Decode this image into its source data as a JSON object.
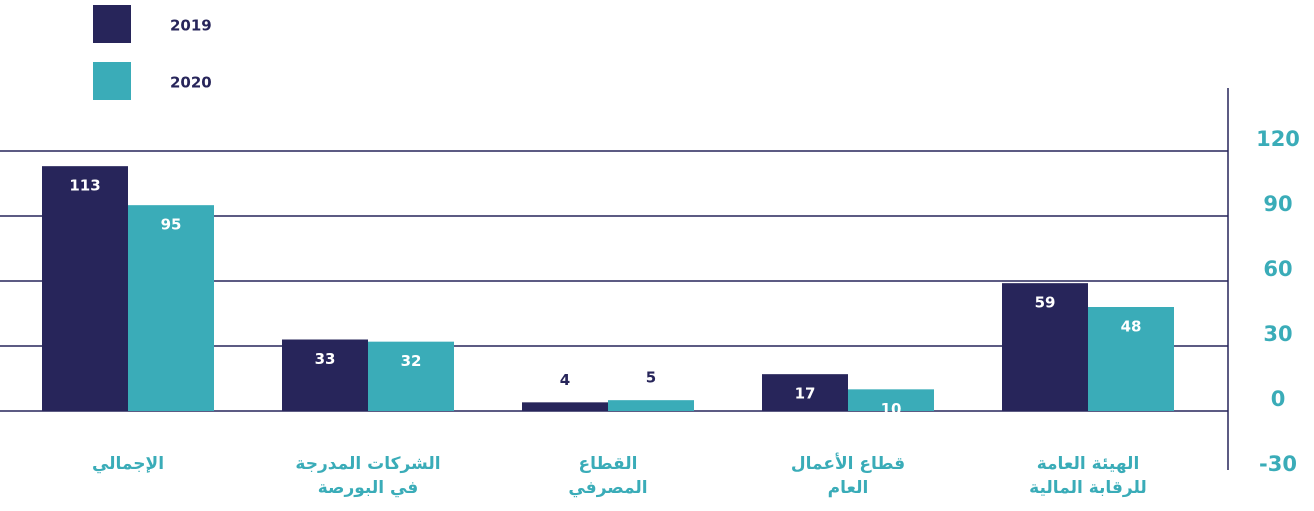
{
  "chart_data": {
    "type": "bar",
    "categories": [
      "الإجمالي",
      "الشركات المدرجة\nفي البورصة",
      "القطاع\nالمصرفي",
      "قطاع الأعمال\nالعام",
      "الهيئة العامة\nللرقابة المالية"
    ],
    "series": [
      {
        "name": "2019",
        "color": "#27255a",
        "values": [
          113,
          33,
          4,
          17,
          59
        ]
      },
      {
        "name": "2020",
        "color": "#3aacb8",
        "values": [
          95,
          32,
          5,
          10,
          48
        ]
      }
    ],
    "ylim": [
      -30,
      120
    ],
    "yticks": [
      -30,
      0,
      30,
      60,
      90,
      120
    ],
    "grid": true,
    "legend": "top-left"
  }
}
